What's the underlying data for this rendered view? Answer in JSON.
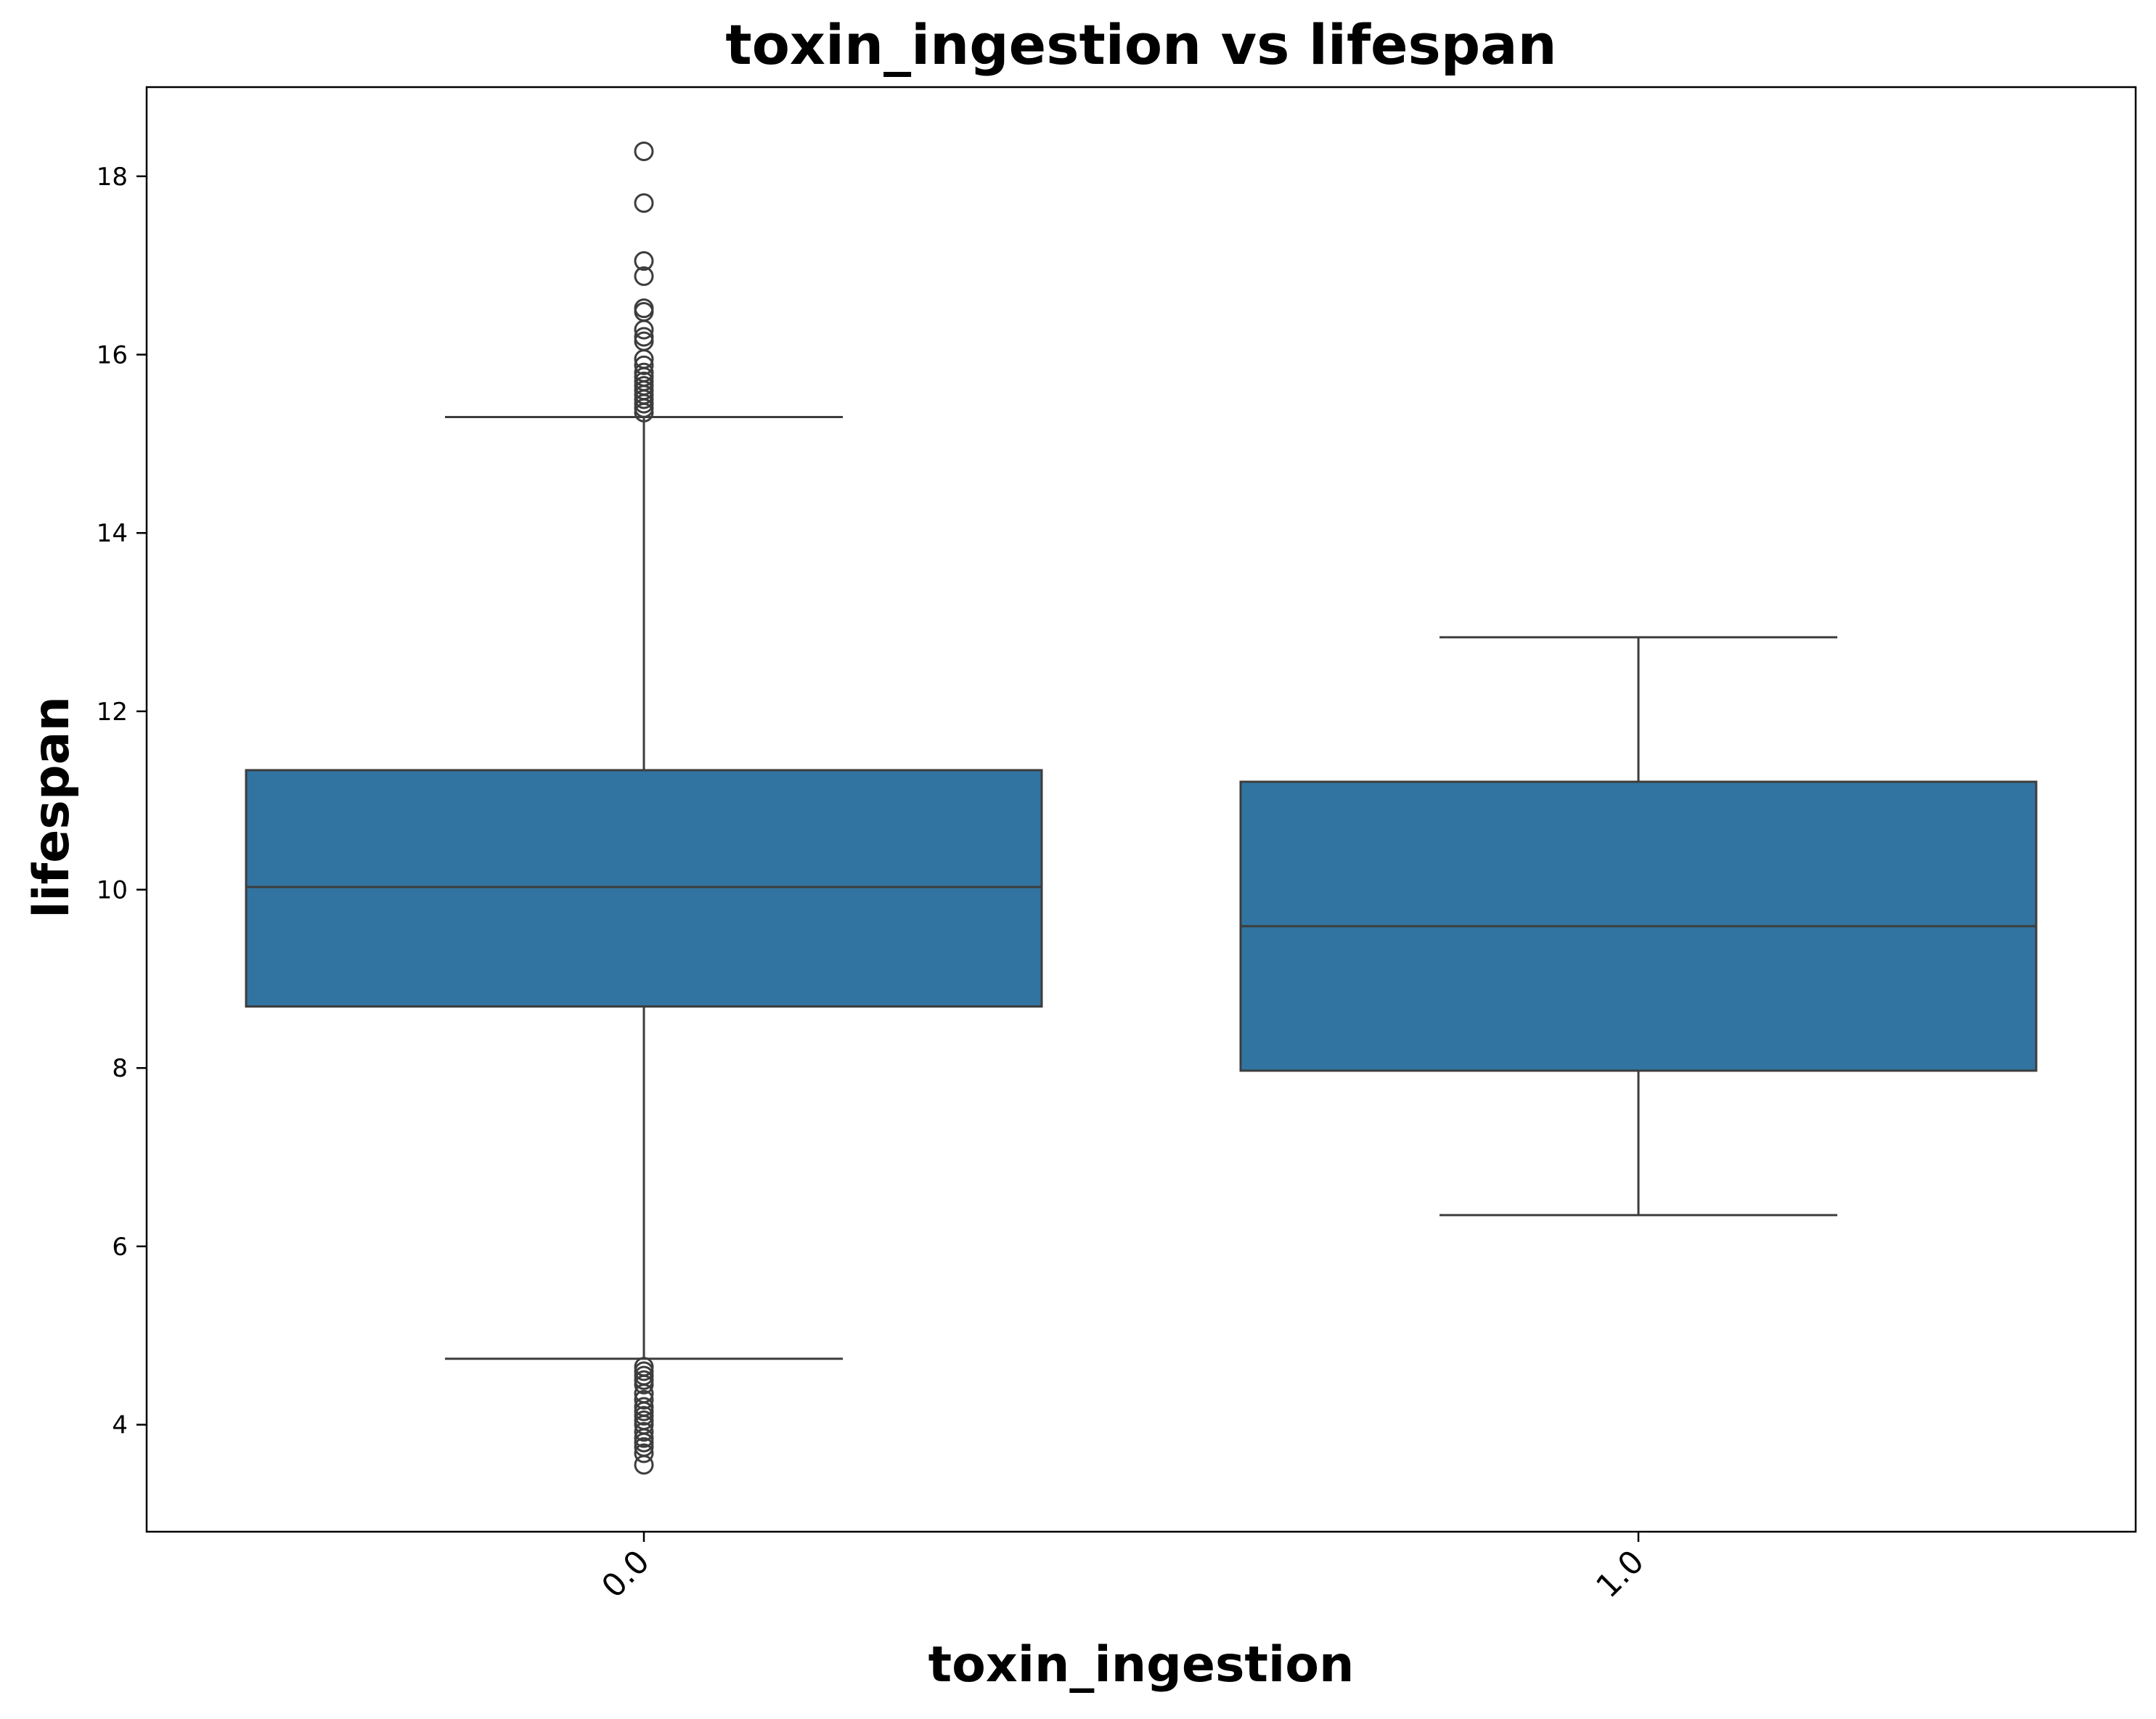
{
  "chart_data": {
    "type": "box",
    "title": "toxin_ingestion vs lifespan",
    "xlabel": "toxin_ingestion",
    "ylabel": "lifespan",
    "ylim": [
      2.8,
      19.0
    ],
    "yticks": [
      4,
      6,
      8,
      10,
      12,
      14,
      16,
      18
    ],
    "grid": false,
    "box_color": "#3274a1",
    "line_color": "#3d3d3d",
    "categories": [
      "0.0",
      "1.0"
    ],
    "boxes": [
      {
        "category": "0.0",
        "whisker_low": 4.74,
        "q1": 8.69,
        "median": 10.03,
        "q3": 11.34,
        "whisker_high": 15.3,
        "outliers": [
          18.28,
          17.7,
          17.05,
          16.88,
          16.52,
          16.48,
          16.28,
          16.2,
          16.15,
          15.95,
          15.88,
          15.8,
          15.75,
          15.7,
          15.65,
          15.6,
          15.55,
          15.5,
          15.45,
          15.4,
          15.35,
          4.65,
          4.6,
          4.55,
          4.5,
          4.45,
          4.35,
          4.28,
          4.2,
          4.15,
          4.1,
          4.05,
          4.0,
          3.92,
          3.85,
          3.8,
          3.75,
          3.68,
          3.55
        ]
      },
      {
        "category": "1.0",
        "whisker_low": 6.35,
        "q1": 7.97,
        "median": 9.59,
        "q3": 11.21,
        "whisker_high": 12.83,
        "outliers": []
      }
    ]
  }
}
